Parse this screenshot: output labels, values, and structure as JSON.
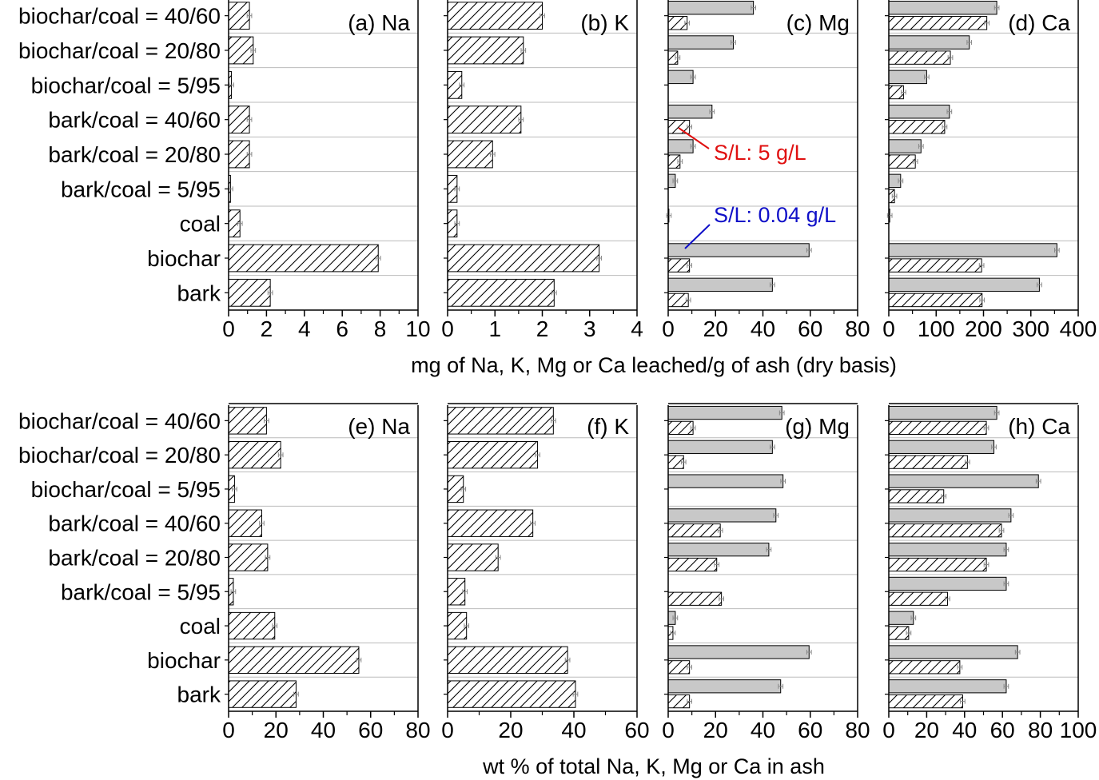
{
  "chart_data": {
    "type": "bar",
    "orientation": "horizontal",
    "categories": [
      "biochar/coal = 40/60",
      "biochar/coal = 20/80",
      "biochar/coal = 5/95",
      "bark/coal = 40/60",
      "bark/coal = 20/80",
      "bark/coal = 5/95",
      "coal",
      "biochar",
      "bark"
    ],
    "series_styles": {
      "s_high": "solid gray fill (S/L: 0.04 g/L)",
      "s_low": "diagonal hatch fill (S/L: 5 g/L)"
    },
    "colors": {
      "gray_bar": "#c8c8c8",
      "annotation_red": "#e01010",
      "annotation_blue": "#1010c8",
      "grid": "#bbbbbb"
    },
    "rows": [
      {
        "xlabel": "mg of Na, K, Mg or Ca leached/g of ash (dry basis)",
        "panels": [
          {
            "label": "(a) Na",
            "xlim": [
              0,
              10
            ],
            "ticks": [
              "0",
              "2",
              "4",
              "6",
              "8",
              "10"
            ],
            "series": [
              {
                "name": "S/L: 5 g/L",
                "style": "hatch",
                "values": [
                  1.1,
                  1.3,
                  0.15,
                  1.1,
                  1.1,
                  0.1,
                  0.6,
                  7.9,
                  2.2
                ]
              }
            ]
          },
          {
            "label": "(b) K",
            "xlim": [
              0,
              4
            ],
            "ticks": [
              "0",
              "1",
              "2",
              "3",
              "4"
            ],
            "series": [
              {
                "name": "S/L: 5 g/L",
                "style": "hatch",
                "values": [
                  2.0,
                  1.6,
                  0.3,
                  1.55,
                  0.95,
                  0.2,
                  0.2,
                  3.2,
                  2.25
                ]
              }
            ]
          },
          {
            "label": "(c) Mg",
            "xlim": [
              0,
              80
            ],
            "ticks": [
              "0",
              "20",
              "40",
              "60",
              "80"
            ],
            "series": [
              {
                "name": "S/L: 0.04 g/L",
                "style": "gray",
                "values": [
                  36,
                  27.5,
                  10.5,
                  18.5,
                  10.5,
                  3,
                  0.3,
                  59.5,
                  44
                ]
              },
              {
                "name": "S/L: 5 g/L",
                "style": "hatch",
                "values": [
                  8,
                  4,
                  0,
                  9,
                  5,
                  0,
                  0,
                  9,
                  8.5
                ]
              }
            ]
          },
          {
            "label": "(d) Ca",
            "xlim": [
              0,
              400
            ],
            "ticks": [
              "0",
              "100",
              "200",
              "300",
              "400"
            ],
            "series": [
              {
                "name": "S/L: 0.04 g/L",
                "style": "gray",
                "values": [
                  228,
                  170,
                  80,
                  128,
                  68,
                  25,
                  2,
                  355,
                  318
                ]
              },
              {
                "name": "S/L: 5 g/L",
                "style": "hatch",
                "values": [
                  207,
                  130,
                  31,
                  118,
                  56,
                  12,
                  0,
                  196,
                  197
                ]
              }
            ]
          }
        ]
      },
      {
        "xlabel": "wt % of total Na, K, Mg or Ca in ash",
        "panels": [
          {
            "label": "(e) Na",
            "xlim": [
              0,
              80
            ],
            "ticks": [
              "0",
              "20",
              "40",
              "60",
              "80"
            ],
            "series": [
              {
                "name": "S/L: 5 g/L",
                "style": "hatch",
                "values": [
                  16,
                  22,
                  2.5,
                  14,
                  16.5,
                  2,
                  19.5,
                  55,
                  28.5
                ]
              }
            ]
          },
          {
            "label": "(f) K",
            "xlim": [
              0,
              60
            ],
            "ticks": [
              "0",
              "20",
              "40",
              "60"
            ],
            "series": [
              {
                "name": "S/L: 5 g/L",
                "style": "hatch",
                "values": [
                  33.5,
                  28.5,
                  5,
                  27,
                  16,
                  5.5,
                  6,
                  38,
                  40.5
                ]
              }
            ]
          },
          {
            "label": "(g) Mg",
            "xlim": [
              0,
              80
            ],
            "ticks": [
              "0",
              "20",
              "40",
              "60",
              "80"
            ],
            "series": [
              {
                "name": "S/L: 0.04 g/L",
                "style": "gray",
                "values": [
                  48,
                  44,
                  48.5,
                  45.5,
                  42.5,
                  0,
                  3,
                  59.5,
                  47.5
                ]
              },
              {
                "name": "S/L: 5 g/L",
                "style": "hatch",
                "values": [
                  10.5,
                  6.5,
                  0,
                  22,
                  20.5,
                  22.5,
                  2,
                  9,
                  9
                ]
              }
            ]
          },
          {
            "label": "(h) Ca",
            "xlim": [
              0,
              100
            ],
            "ticks": [
              "0",
              "20",
              "40",
              "60",
              "80",
              "100"
            ],
            "series": [
              {
                "name": "S/L: 0.04 g/L",
                "style": "gray",
                "values": [
                  57,
                  55.5,
                  79,
                  64.5,
                  62,
                  62,
                  13,
                  68,
                  62
                ]
              },
              {
                "name": "S/L: 5 g/L",
                "style": "hatch",
                "values": [
                  51.5,
                  41.5,
                  29,
                  59.5,
                  51.5,
                  31,
                  10.5,
                  37.5,
                  39
                ]
              }
            ]
          }
        ]
      }
    ],
    "annotations": [
      {
        "text": "S/L: 5 g/L",
        "color": "red",
        "points_to": "S/L: 5 g/L"
      },
      {
        "text": "S/L: 0.04 g/L",
        "color": "blue",
        "points_to": "S/L: 0.04 g/L"
      }
    ]
  }
}
